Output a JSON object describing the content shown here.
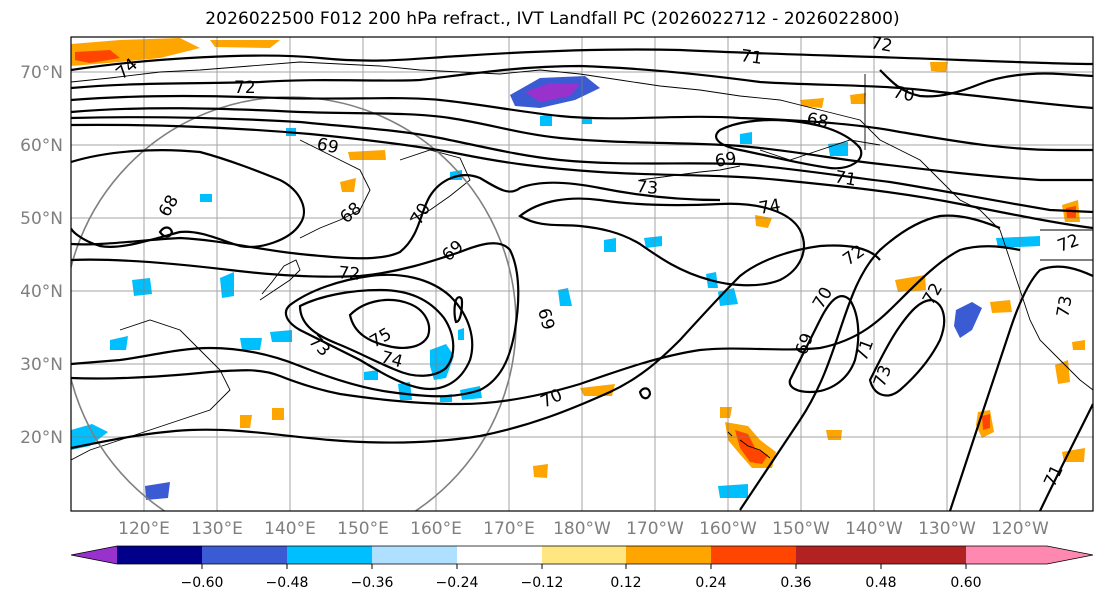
{
  "title": "2026022500 F012 200 hPa refract., IVT Landfall PC (2026022712 - 2026022800)",
  "lat_ticks": [
    "70°N",
    "60°N",
    "50°N",
    "40°N",
    "30°N",
    "20°N"
  ],
  "lon_ticks": [
    "120°E",
    "130°E",
    "140°E",
    "150°E",
    "160°E",
    "170°E",
    "180°W",
    "170°W",
    "160°W",
    "150°W",
    "140°W",
    "130°W",
    "120°W"
  ],
  "colorbar": {
    "ticks": [
      "−0.60",
      "−0.48",
      "−0.36",
      "−0.24",
      "−0.12",
      "0.12",
      "0.24",
      "0.36",
      "0.48",
      "0.60"
    ],
    "colors": [
      "#9932cc",
      "#00008b",
      "#3a5bd4",
      "#00bfff",
      "#b0e0ff",
      "#ffffff",
      "#ffe680",
      "#ffa500",
      "#ff4500",
      "#b22222",
      "#ff88b0"
    ]
  },
  "contour_labels": [
    "74",
    "72",
    "71",
    "72",
    "70",
    "69",
    "68",
    "69",
    "68",
    "70",
    "73",
    "71",
    "74",
    "72",
    "68",
    "69",
    "72",
    "75",
    "73",
    "74",
    "69",
    "70",
    "72",
    "70",
    "69",
    "71",
    "73",
    "72",
    "71",
    "73"
  ],
  "accent_colors": {
    "contour": "#000000",
    "grid": "#808080",
    "circle": "#808080"
  }
}
